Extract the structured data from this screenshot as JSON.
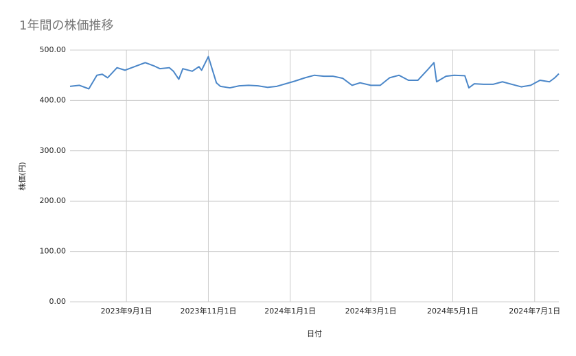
{
  "chart_data": {
    "type": "line",
    "title": "1年間の株価推移",
    "x_label": "日付",
    "y_label": "株価(円)",
    "x": [
      "2023-07-21",
      "2023-07-28",
      "2023-08-04",
      "2023-08-10",
      "2023-08-14",
      "2023-08-18",
      "2023-08-25",
      "2023-08-31",
      "2023-09-08",
      "2023-09-15",
      "2023-09-22",
      "2023-09-26",
      "2023-10-03",
      "2023-10-06",
      "2023-10-10",
      "2023-10-13",
      "2023-10-20",
      "2023-10-25",
      "2023-10-27",
      "2023-11-01",
      "2023-11-07",
      "2023-11-10",
      "2023-11-17",
      "2023-11-24",
      "2023-12-01",
      "2023-12-08",
      "2023-12-15",
      "2023-12-22",
      "2024-01-04",
      "2024-01-12",
      "2024-01-19",
      "2024-01-26",
      "2024-02-02",
      "2024-02-09",
      "2024-02-16",
      "2024-02-22",
      "2024-03-01",
      "2024-03-08",
      "2024-03-15",
      "2024-03-22",
      "2024-03-29",
      "2024-04-05",
      "2024-04-12",
      "2024-04-17",
      "2024-04-19",
      "2024-04-26",
      "2024-05-02",
      "2024-05-10",
      "2024-05-13",
      "2024-05-17",
      "2024-05-24",
      "2024-05-31",
      "2024-06-07",
      "2024-06-14",
      "2024-06-21",
      "2024-06-28",
      "2024-07-05",
      "2024-07-12",
      "2024-07-16",
      "2024-07-19"
    ],
    "series": [
      {
        "name": "株価",
        "color": "#4a86c8",
        "values": [
          428,
          430,
          423,
          450,
          452,
          445,
          465,
          460,
          468,
          475,
          468,
          463,
          465,
          458,
          442,
          463,
          458,
          467,
          460,
          487,
          435,
          428,
          425,
          429,
          430,
          429,
          426,
          428,
          438,
          445,
          450,
          448,
          448,
          444,
          430,
          435,
          430,
          430,
          445,
          450,
          440,
          440,
          460,
          475,
          437,
          448,
          450,
          449,
          425,
          433,
          432,
          432,
          437,
          432,
          427,
          430,
          440,
          437,
          445,
          453
        ]
      }
    ],
    "xlim": [
      "2023-07-21",
      "2024-07-19"
    ],
    "xticks": [
      {
        "value": "2023-09-01",
        "label": "2023年9月1日"
      },
      {
        "value": "2023-11-01",
        "label": "2023年11月1日"
      },
      {
        "value": "2024-01-01",
        "label": "2024年1月1日"
      },
      {
        "value": "2024-03-01",
        "label": "2024年3月1日"
      },
      {
        "value": "2024-05-01",
        "label": "2024年5月1日"
      },
      {
        "value": "2024-07-01",
        "label": "2024年7月1日"
      }
    ],
    "ylim": [
      0,
      500
    ],
    "yticks": [
      {
        "value": 0,
        "label": "0.00"
      },
      {
        "value": 100,
        "label": "100.00"
      },
      {
        "value": 200,
        "label": "200.00"
      },
      {
        "value": 300,
        "label": "300.00"
      },
      {
        "value": 400,
        "label": "400.00"
      },
      {
        "value": 500,
        "label": "500.00"
      }
    ],
    "grid": true
  }
}
